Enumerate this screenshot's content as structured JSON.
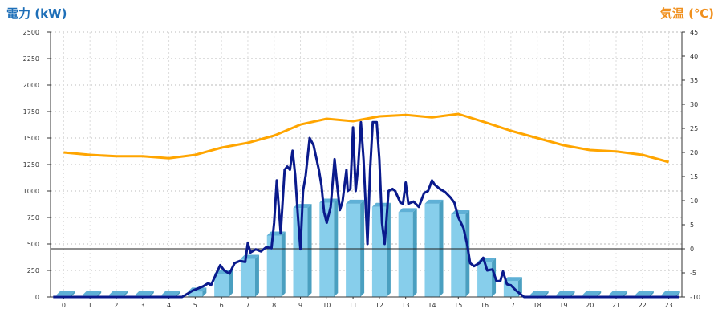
{
  "chart_data": {
    "type": "bar+line",
    "left_axis": {
      "title": "電力 (kW)",
      "color": "#1e6fb8",
      "ylim": [
        0,
        2500
      ],
      "ticks": [
        0,
        250,
        500,
        750,
        1000,
        1250,
        1500,
        1750,
        2000,
        2250,
        2500
      ]
    },
    "right_axis": {
      "title": "気温 (℃)",
      "color": "#f0901e",
      "ylim": [
        -10,
        45
      ],
      "ticks": [
        -10,
        -5,
        0,
        5,
        10,
        15,
        20,
        25,
        30,
        35,
        40,
        45
      ]
    },
    "categories": [
      "0",
      "1",
      "2",
      "3",
      "4",
      "5",
      "6",
      "7",
      "8",
      "9",
      "10",
      "11",
      "12",
      "13",
      "14",
      "15",
      "16",
      "17",
      "18",
      "19",
      "20",
      "21",
      "22",
      "23"
    ],
    "grid": true,
    "series": [
      {
        "kind": "bar",
        "axis": "left",
        "color": "#87ceeb",
        "values": [
          20,
          20,
          20,
          20,
          20,
          50,
          220,
          360,
          580,
          840,
          890,
          880,
          850,
          800,
          880,
          780,
          330,
          150,
          20,
          20,
          20,
          20,
          20,
          20
        ]
      },
      {
        "kind": "line",
        "axis": "left",
        "color": "#0a1a8c",
        "points": [
          [
            -0.4,
            0
          ],
          [
            4.5,
            0
          ],
          [
            4.9,
            60
          ],
          [
            5.3,
            100
          ],
          [
            5.5,
            130
          ],
          [
            5.6,
            110
          ],
          [
            5.8,
            220
          ],
          [
            5.95,
            300
          ],
          [
            6.1,
            250
          ],
          [
            6.3,
            220
          ],
          [
            6.5,
            320
          ],
          [
            6.7,
            340
          ],
          [
            6.9,
            330
          ],
          [
            7.0,
            510
          ],
          [
            7.1,
            420
          ],
          [
            7.3,
            450
          ],
          [
            7.5,
            430
          ],
          [
            7.7,
            470
          ],
          [
            7.9,
            460
          ],
          [
            8.0,
            700
          ],
          [
            8.1,
            1100
          ],
          [
            8.25,
            600
          ],
          [
            8.4,
            1200
          ],
          [
            8.5,
            1230
          ],
          [
            8.6,
            1200
          ],
          [
            8.7,
            1380
          ],
          [
            8.8,
            1150
          ],
          [
            8.9,
            780
          ],
          [
            9.0,
            450
          ],
          [
            9.1,
            1000
          ],
          [
            9.2,
            1150
          ],
          [
            9.35,
            1500
          ],
          [
            9.5,
            1430
          ],
          [
            9.7,
            1200
          ],
          [
            9.8,
            1050
          ],
          [
            9.9,
            800
          ],
          [
            10.0,
            700
          ],
          [
            10.15,
            850
          ],
          [
            10.3,
            1300
          ],
          [
            10.4,
            1050
          ],
          [
            10.5,
            820
          ],
          [
            10.6,
            900
          ],
          [
            10.75,
            1200
          ],
          [
            10.8,
            1000
          ],
          [
            10.9,
            1020
          ],
          [
            11.0,
            1600
          ],
          [
            11.1,
            1000
          ],
          [
            11.2,
            1250
          ],
          [
            11.3,
            1650
          ],
          [
            11.4,
            1300
          ],
          [
            11.55,
            500
          ],
          [
            11.65,
            1200
          ],
          [
            11.75,
            1650
          ],
          [
            11.9,
            1650
          ],
          [
            12.0,
            1300
          ],
          [
            12.1,
            700
          ],
          [
            12.2,
            500
          ],
          [
            12.35,
            1000
          ],
          [
            12.5,
            1020
          ],
          [
            12.6,
            1000
          ],
          [
            12.8,
            890
          ],
          [
            12.9,
            880
          ],
          [
            13.0,
            1080
          ],
          [
            13.1,
            880
          ],
          [
            13.3,
            900
          ],
          [
            13.5,
            850
          ],
          [
            13.7,
            980
          ],
          [
            13.85,
            1000
          ],
          [
            14.0,
            1100
          ],
          [
            14.1,
            1060
          ],
          [
            14.3,
            1020
          ],
          [
            14.5,
            990
          ],
          [
            14.7,
            940
          ],
          [
            14.85,
            890
          ],
          [
            15.0,
            750
          ],
          [
            15.2,
            650
          ],
          [
            15.35,
            480
          ],
          [
            15.45,
            320
          ],
          [
            15.6,
            290
          ],
          [
            15.8,
            320
          ],
          [
            15.95,
            370
          ],
          [
            16.1,
            250
          ],
          [
            16.3,
            260
          ],
          [
            16.45,
            150
          ],
          [
            16.6,
            150
          ],
          [
            16.7,
            240
          ],
          [
            16.85,
            120
          ],
          [
            17.0,
            110
          ],
          [
            17.2,
            60
          ],
          [
            17.5,
            0
          ],
          [
            23.4,
            0
          ]
        ]
      },
      {
        "kind": "line",
        "axis": "right",
        "color": "#ffa500",
        "values": [
          20.0,
          19.5,
          19.2,
          19.2,
          18.8,
          19.5,
          21.0,
          22.0,
          23.5,
          25.8,
          27.0,
          26.5,
          27.5,
          27.8,
          27.3,
          28.0,
          26.3,
          24.5,
          23.0,
          21.5,
          20.5,
          20.2,
          19.5,
          18.0
        ]
      }
    ]
  }
}
